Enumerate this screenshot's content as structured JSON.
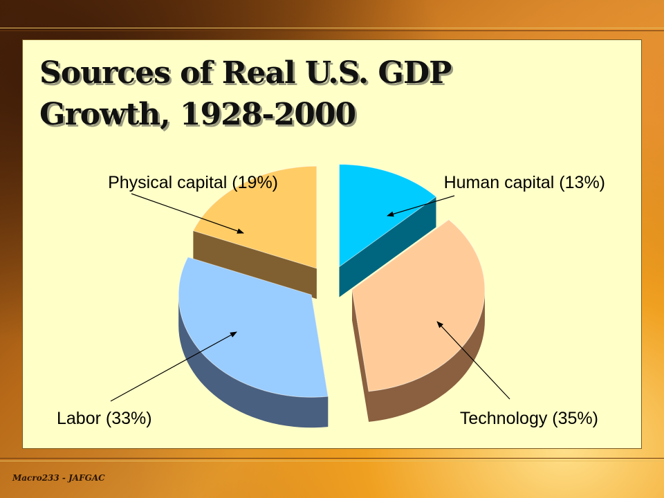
{
  "slide": {
    "title_line1": "Sources of Real U.S. GDP",
    "title_line2": "Growth, 1928-2000",
    "footer": "Macro233 - JAFGAC"
  },
  "chart_data": {
    "type": "pie",
    "title": "Sources of Real U.S. GDP Growth, 1928-2000",
    "legend": "none",
    "slices": [
      {
        "label": "Human capital (13%)",
        "value": 13,
        "color": "#00ccff",
        "side": "#006680"
      },
      {
        "label": "Technology (35%)",
        "value": 35,
        "color": "#ffcc99",
        "side": "#8a6040"
      },
      {
        "label": "Labor (33%)",
        "value": 33,
        "color": "#99ccff",
        "side": "#4a6080"
      },
      {
        "label": "Physical capital (19%)",
        "value": 19,
        "color": "#ffcc66",
        "side": "#806030"
      }
    ]
  }
}
